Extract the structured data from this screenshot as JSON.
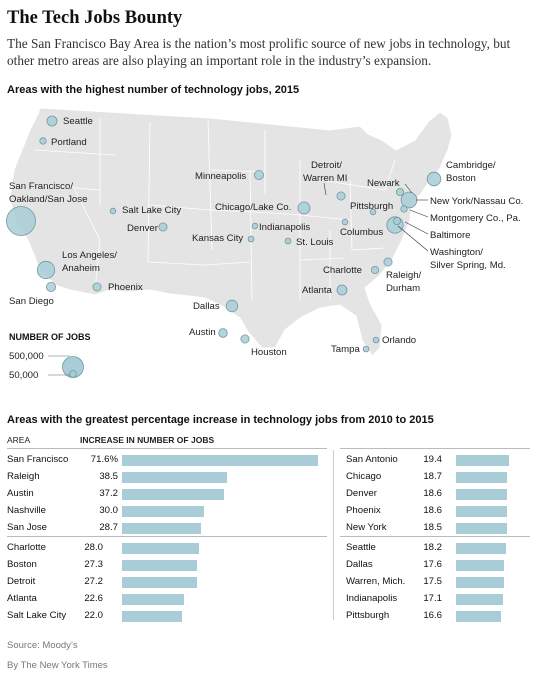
{
  "title": "The Tech Jobs Bounty",
  "subtitle": "The San Francisco Bay Area is the nation’s most prolific source of new jobs in technology, but other metro areas are also playing an important role in the industry’s expansion.",
  "map_heading": "Areas with the highest number of technology jobs, 2015",
  "bars_heading": "Areas with the greatest percentage increase in technology jobs from 2010 to 2015",
  "legend": {
    "title": "NUMBER OF JOBS",
    "items": [
      "500,000",
      "50,000"
    ]
  },
  "columns": {
    "area": "AREA",
    "increase": "INCREASE IN NUMBER OF JOBS"
  },
  "source": "Source: Moody’s",
  "credit": "By The New York Times",
  "colors": {
    "circle_fill": "#a8cdd6",
    "circle_stroke": "#6f98a3",
    "bar": "#a8cdd6",
    "map_fill": "#e4e4e4",
    "map_lines": "#ffffff"
  },
  "map_cities": [
    {
      "name": "Seattle",
      "jobs": 60000
    },
    {
      "name": "Portland",
      "jobs": 25000
    },
    {
      "name": "San Francisco/ Oakland/San Jose",
      "jobs": 500000
    },
    {
      "name": "Salt Lake City",
      "jobs": 15000
    },
    {
      "name": "Los Angeles/ Anaheim",
      "jobs": 180000
    },
    {
      "name": "San Diego",
      "jobs": 50000
    },
    {
      "name": "Phoenix",
      "jobs": 40000
    },
    {
      "name": "Denver",
      "jobs": 40000
    },
    {
      "name": "Minneapolis",
      "jobs": 50000
    },
    {
      "name": "Kansas City",
      "jobs": 20000
    },
    {
      "name": "Dallas",
      "jobs": 80000
    },
    {
      "name": "Austin",
      "jobs": 45000
    },
    {
      "name": "Houston",
      "jobs": 40000
    },
    {
      "name": "Chicago/Lake Co.",
      "jobs": 85000
    },
    {
      "name": "Detroit/ Warren MI",
      "jobs": 40000
    },
    {
      "name": "Indianapolis",
      "jobs": 18000
    },
    {
      "name": "St. Louis",
      "jobs": 20000
    },
    {
      "name": "Columbus",
      "jobs": 18000
    },
    {
      "name": "Pittsburgh",
      "jobs": 18000
    },
    {
      "name": "Atlanta",
      "jobs": 60000
    },
    {
      "name": "Charlotte",
      "jobs": 30000
    },
    {
      "name": "Raleigh/ Durham",
      "jobs": 40000
    },
    {
      "name": "Tampa",
      "jobs": 20000
    },
    {
      "name": "Orlando",
      "jobs": 20000
    },
    {
      "name": "Cambridge/ Boston",
      "jobs": 110000
    },
    {
      "name": "Newark",
      "jobs": 30000
    },
    {
      "name": "New York/Nassau Co.",
      "jobs": 150000
    },
    {
      "name": "Montgomery Co., Pa.",
      "jobs": 25000
    },
    {
      "name": "Baltimore",
      "jobs": 30000
    },
    {
      "name": "Washington/ Silver Spring, Md.",
      "jobs": 160000
    }
  ],
  "chart_data": {
    "type": "bar",
    "title": "Areas with the greatest percentage increase in technology jobs from 2010 to 2015",
    "unit": "%",
    "xlim": [
      0,
      71.6
    ],
    "groups": [
      {
        "categories": [
          "San Francisco",
          "Raleigh",
          "Austin",
          "Nashville",
          "San Jose"
        ],
        "values": [
          71.6,
          38.5,
          37.2,
          30.0,
          28.7
        ],
        "labels": [
          "71.6%",
          "38.5",
          "37.2",
          "30.0",
          "28.7"
        ]
      },
      {
        "categories": [
          "Charlotte",
          "Boston",
          "Detroit",
          "Atlanta",
          "Salt Lake City"
        ],
        "values": [
          28.0,
          27.3,
          27.2,
          22.6,
          22.0
        ],
        "labels": [
          "28.0",
          "27.3",
          "27.2",
          "22.6",
          "22.0"
        ]
      },
      {
        "categories": [
          "San Antonio",
          "Chicago",
          "Denver",
          "Phoenix",
          "New York"
        ],
        "values": [
          19.4,
          18.7,
          18.6,
          18.6,
          18.5
        ],
        "labels": [
          "19.4",
          "18.7",
          "18.6",
          "18.6",
          "18.5"
        ]
      },
      {
        "categories": [
          "Seattle",
          "Dallas",
          "Warren, Mich.",
          "Indianapolis",
          "Pittsburgh"
        ],
        "values": [
          18.2,
          17.6,
          17.5,
          17.1,
          16.6
        ],
        "labels": [
          "18.2",
          "17.6",
          "17.5",
          "17.1",
          "16.6"
        ]
      }
    ]
  }
}
